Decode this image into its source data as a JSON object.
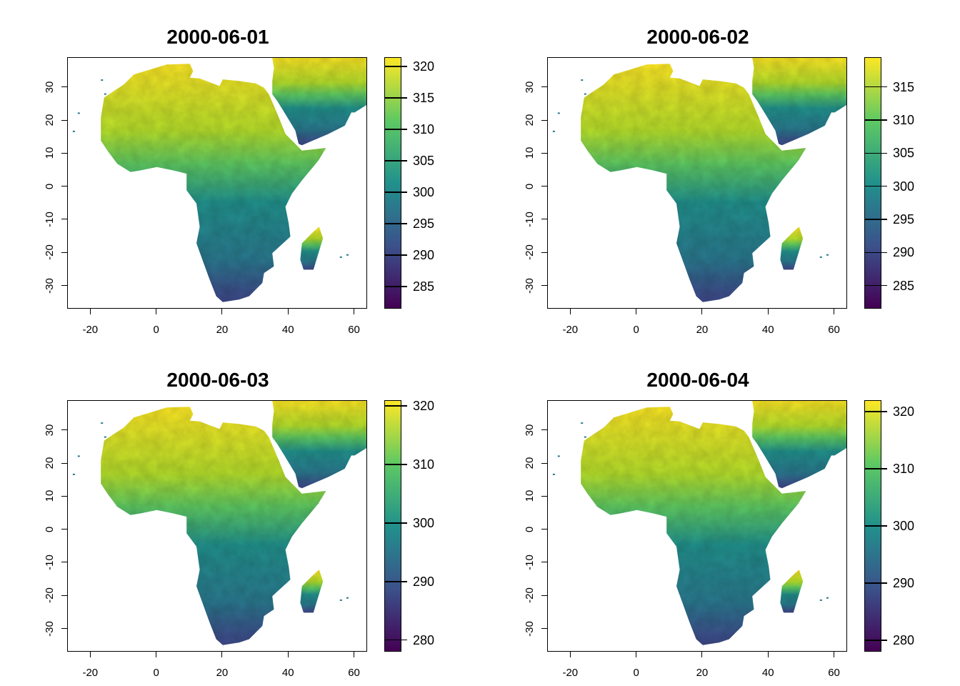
{
  "x_axis_ticks": [
    "-20",
    "0",
    "20",
    "40",
    "60"
  ],
  "y_axis_ticks": [
    "30",
    "20",
    "10",
    "0",
    "-10",
    "-20",
    "-30"
  ],
  "colormap": [
    "#440154",
    "#3b528b",
    "#21918c",
    "#5ec962",
    "#fde725"
  ],
  "panels": [
    {
      "title": "2000-06-01",
      "legend": {
        "min": 281.5,
        "max": 321.5,
        "ticks": [
          "285",
          "290",
          "295",
          "300",
          "305",
          "310",
          "315",
          "320"
        ]
      }
    },
    {
      "title": "2000-06-02",
      "legend": {
        "min": 281.5,
        "max": 319.5,
        "ticks": [
          "285",
          "290",
          "295",
          "300",
          "305",
          "310",
          "315"
        ]
      }
    },
    {
      "title": "2000-06-03",
      "legend": {
        "min": 278,
        "max": 321,
        "ticks": [
          "280",
          "290",
          "300",
          "310",
          "320"
        ]
      }
    },
    {
      "title": "2000-06-04",
      "legend": {
        "min": 278,
        "max": 322,
        "ticks": [
          "280",
          "290",
          "300",
          "310",
          "320"
        ]
      }
    }
  ]
}
